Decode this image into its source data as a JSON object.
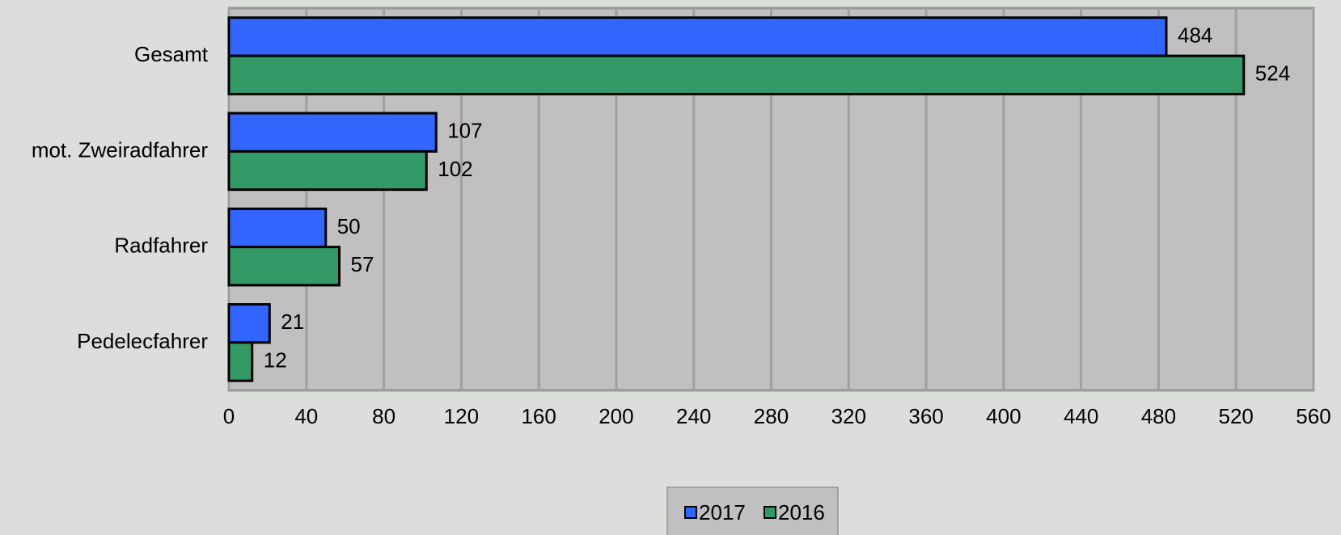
{
  "chart_data": {
    "type": "barh",
    "categories": [
      "Gesamt",
      "mot. Zweiradfahrer",
      "Radfahrer",
      "Pedelecfahrer"
    ],
    "series": [
      {
        "name": "2017",
        "color": "#3366ff",
        "values": [
          484,
          107,
          50,
          21
        ]
      },
      {
        "name": "2016",
        "color": "#339966",
        "values": [
          524,
          102,
          57,
          12
        ]
      }
    ],
    "xlim": [
      0,
      560
    ],
    "xticks": [
      0,
      40,
      80,
      120,
      160,
      200,
      240,
      280,
      320,
      360,
      400,
      440,
      480,
      520,
      560
    ],
    "grid": true,
    "legend": "bottom"
  }
}
